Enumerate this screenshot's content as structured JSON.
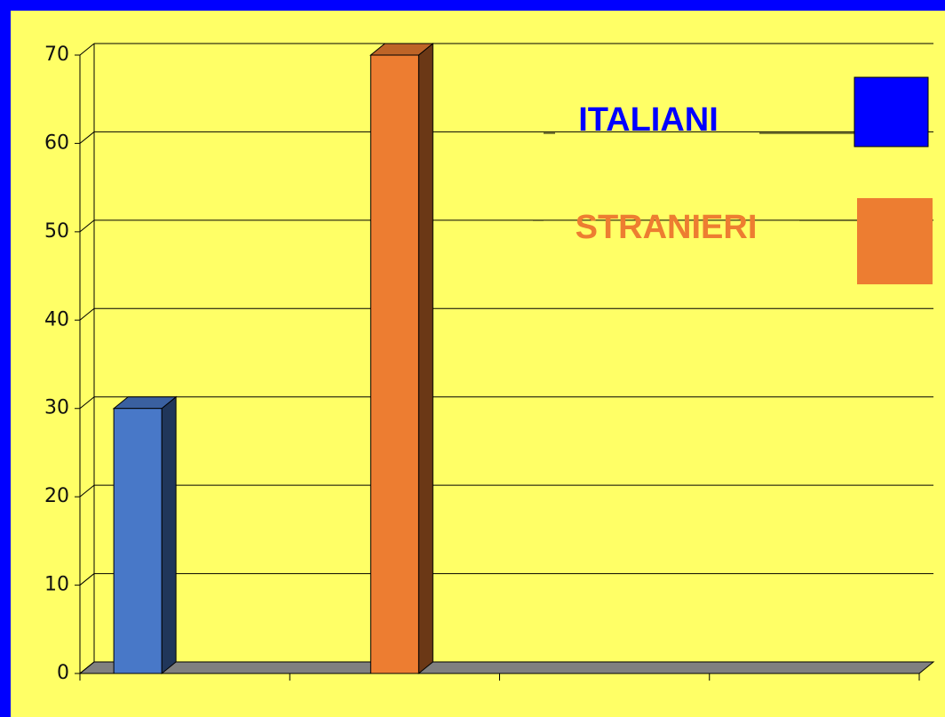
{
  "chart_data": {
    "type": "bar3d",
    "categories": [
      null,
      null,
      null,
      null
    ],
    "series": [
      {
        "name": "ITALIANI",
        "color": "#4878c8",
        "values": [
          30,
          null,
          null,
          null
        ]
      },
      {
        "name": "STRANIERI",
        "color": "#ed7d31",
        "values": [
          null,
          70,
          null,
          null
        ]
      }
    ],
    "ylim": [
      0,
      70
    ],
    "yticks": [
      0,
      10,
      20,
      30,
      40,
      50,
      60,
      70
    ],
    "grid": true
  }
}
